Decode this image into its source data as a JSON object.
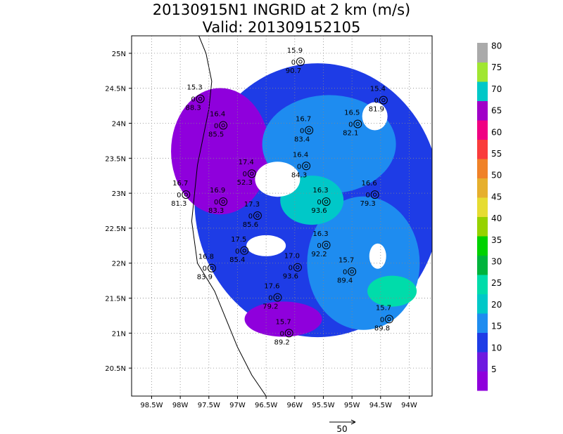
{
  "title": {
    "line1": "20130915N1 INGRID at 2 km (m/s)",
    "line2": "Valid: 201309152105"
  },
  "chart_data": {
    "type": "heatmap",
    "x_tick_labels": [
      "98.5W",
      "98W",
      "97.5W",
      "97W",
      "96.5W",
      "96W",
      "95.5W",
      "95W",
      "94.5W",
      "94W"
    ],
    "x_ticks": [
      -98.5,
      -98,
      -97.5,
      -97,
      -96.5,
      -96,
      -95.5,
      -95,
      -94.5,
      -94
    ],
    "y_tick_labels": [
      "20.5N",
      "21N",
      "21.5N",
      "22N",
      "22.5N",
      "23N",
      "23.5N",
      "24N",
      "24.5N",
      "25N"
    ],
    "y_ticks": [
      20.5,
      21,
      21.5,
      22,
      22.5,
      23,
      23.5,
      24,
      24.5,
      25
    ],
    "xlim": [
      -98.85,
      -93.6
    ],
    "ylim": [
      20.1,
      25.25
    ],
    "grid": true,
    "colorbar": {
      "labels": [
        "5",
        "10",
        "15",
        "20",
        "25",
        "30",
        "35",
        "40",
        "45",
        "50",
        "55",
        "60",
        "65",
        "70",
        "75",
        "80"
      ],
      "colors": [
        "#8f00dc",
        "#6e1ae0",
        "#1e3ce6",
        "#1e8cf0",
        "#00c8c8",
        "#00dcaa",
        "#00b43c",
        "#00d200",
        "#96d200",
        "#e6dc32",
        "#e6af2d",
        "#f08228",
        "#fa3c3c",
        "#f00082",
        "#a000c8",
        "#00c8c8",
        "#a0e632",
        "#aaaaaa"
      ],
      "colors_note": ""
    },
    "reference_vector": {
      "label": "50"
    },
    "stations": [
      {
        "lon": -95.9,
        "lat": 24.88,
        "top": "15.9",
        "mid": "0",
        "bot": "90.7"
      },
      {
        "lon": -97.65,
        "lat": 24.35,
        "top": "15.3",
        "mid": "0",
        "bot": "88.3"
      },
      {
        "lon": -94.45,
        "lat": 24.33,
        "top": "15.4",
        "mid": "0",
        "bot": "81.9"
      },
      {
        "lon": -97.25,
        "lat": 23.97,
        "top": "16.4",
        "mid": "0",
        "bot": "85.5"
      },
      {
        "lon": -95.75,
        "lat": 23.9,
        "top": "16.7",
        "mid": "0",
        "bot": "83.4"
      },
      {
        "lon": -94.9,
        "lat": 23.99,
        "top": "16.5",
        "mid": "0",
        "bot": "82.1"
      },
      {
        "lon": -96.75,
        "lat": 23.28,
        "top": "17.4",
        "mid": "0",
        "bot": "52.3"
      },
      {
        "lon": -95.8,
        "lat": 23.39,
        "top": "16.4",
        "mid": "0",
        "bot": "84.3"
      },
      {
        "lon": -97.9,
        "lat": 22.98,
        "top": "16.7",
        "mid": "0",
        "bot": "81.3"
      },
      {
        "lon": -97.25,
        "lat": 22.88,
        "top": "16.9",
        "mid": "0",
        "bot": "83.3"
      },
      {
        "lon": -94.6,
        "lat": 22.98,
        "top": "16.6",
        "mid": "0",
        "bot": "79.3"
      },
      {
        "lon": -96.65,
        "lat": 22.68,
        "top": "17.3",
        "mid": "0",
        "bot": "85.6"
      },
      {
        "lon": -95.45,
        "lat": 22.88,
        "top": "16.3",
        "mid": "0",
        "bot": "93.6"
      },
      {
        "lon": -96.88,
        "lat": 22.18,
        "top": "17.5",
        "mid": "0",
        "bot": "85.4"
      },
      {
        "lon": -95.45,
        "lat": 22.26,
        "top": "16.3",
        "mid": "0",
        "bot": "92.2"
      },
      {
        "lon": -97.45,
        "lat": 21.93,
        "top": "16.8",
        "mid": "0",
        "bot": "83.9"
      },
      {
        "lon": -95.95,
        "lat": 21.94,
        "top": "17.0",
        "mid": "0",
        "bot": "93.6"
      },
      {
        "lon": -95.0,
        "lat": 21.88,
        "top": "15.7",
        "mid": "0",
        "bot": "89.4"
      },
      {
        "lon": -96.3,
        "lat": 21.51,
        "top": "17.6",
        "mid": "0",
        "bot": "79.2"
      },
      {
        "lon": -94.35,
        "lat": 21.2,
        "top": "15.7",
        "mid": "0",
        "bot": "89.8"
      },
      {
        "lon": -96.1,
        "lat": 21.0,
        "top": "15.7",
        "mid": "0",
        "bot": "89.2"
      }
    ]
  }
}
